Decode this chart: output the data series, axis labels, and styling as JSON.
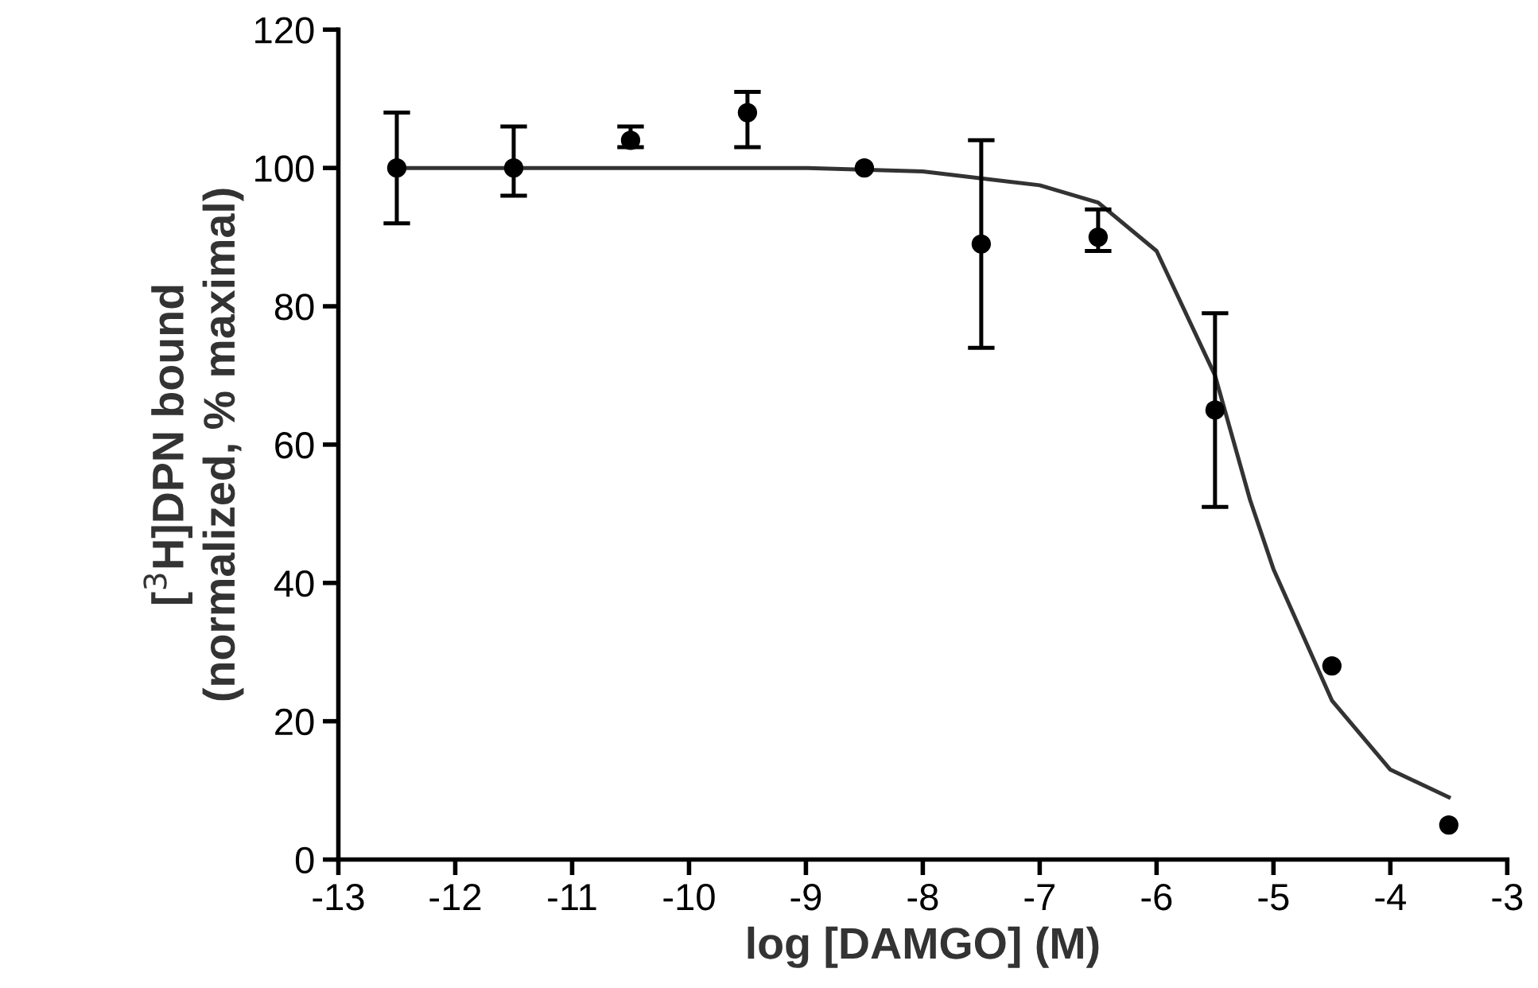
{
  "chart_data": {
    "type": "scatter",
    "xlabel": "log [DAMGO] (M)",
    "ylabel": "[$^{3}$H]DPN bound\n(normalized, % maximal)",
    "xlim": [
      -13,
      -3
    ],
    "xticks": [
      -13,
      -12,
      -11,
      -10,
      -9,
      -8,
      -7,
      -6,
      -5,
      -4,
      -3
    ],
    "ylim": [
      0,
      120
    ],
    "yticks": [
      0,
      20,
      40,
      60,
      80,
      100,
      120
    ],
    "grid": false,
    "legend": false,
    "series": [
      {
        "color": "#000000",
        "marker": "circle",
        "x": [
          -12.5,
          -11.5,
          -10.5,
          -9.5,
          -8.5,
          -7.5,
          -6.5,
          -5.5,
          -4.5,
          -3.5
        ],
        "values": [
          100,
          100,
          104,
          108,
          100,
          89,
          90,
          65,
          28,
          5
        ],
        "errors": [
          [
            92,
            108
          ],
          [
            96,
            106
          ],
          [
            103,
            106
          ],
          [
            103,
            111
          ],
          null,
          [
            74,
            104
          ],
          [
            88,
            94
          ],
          [
            51,
            79
          ],
          null,
          null
        ]
      },
      {
        "type": "line",
        "color": "#333333",
        "marker": "none",
        "line_style": "solid",
        "x": [
          -12.5,
          -9,
          -8,
          -7,
          -6.5,
          -6,
          -5.5,
          -5.2,
          -5,
          -4.5,
          -4,
          -3.5
        ],
        "values": [
          100,
          100,
          99.5,
          97.5,
          95,
          88,
          70,
          52,
          42,
          23,
          13,
          9
        ]
      }
    ]
  }
}
